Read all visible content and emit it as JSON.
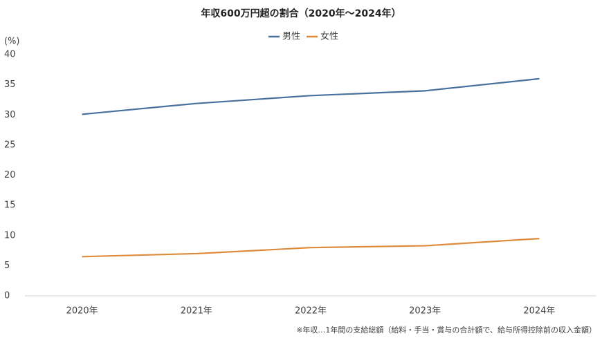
{
  "chart_data": {
    "type": "line",
    "title": "年収600万円超の割合（2020年～2024年）",
    "y_unit": "(%)",
    "note": "※年収…1年間の支給総額（給料・手当・賞与の合計額で、給与所得控除前の収入金額）",
    "categories": [
      "2020年",
      "2021年",
      "2022年",
      "2023年",
      "2024年"
    ],
    "series": [
      {
        "name": "男性",
        "color": "#48709c",
        "values": [
          30.1,
          31.9,
          33.2,
          34.0,
          36.0
        ]
      },
      {
        "name": "女性",
        "color": "#dd8a3b",
        "values": [
          6.5,
          7.0,
          8.0,
          8.3,
          9.5
        ]
      }
    ],
    "ylim": [
      0,
      40
    ],
    "yticks": [
      0,
      5,
      10,
      15,
      20,
      25,
      30,
      35,
      40
    ],
    "grid": false
  }
}
